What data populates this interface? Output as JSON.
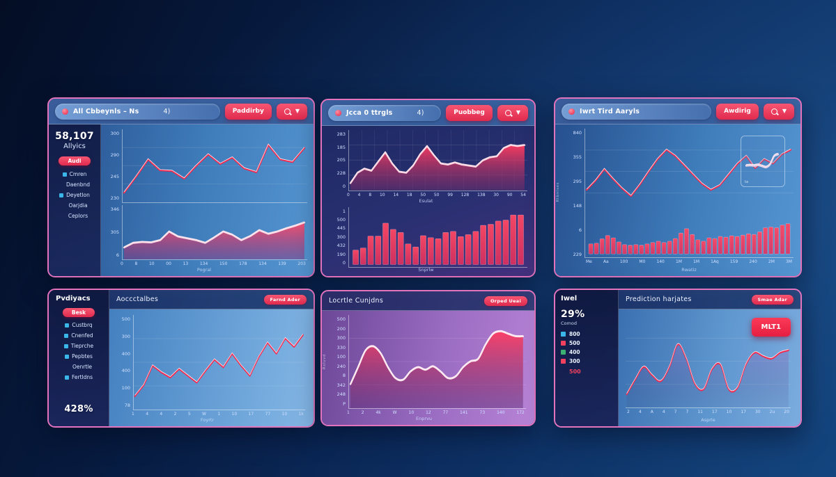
{
  "colors": {
    "accent_red": "#f2415f",
    "panel_border": "#e273bc",
    "icon_blue": "#3ab6e8",
    "legend_green": "#3bb273"
  },
  "panels": {
    "p1": {
      "search_text": "All Cbbeynls – Ns",
      "search_badge": "4)",
      "button": "Paddirby",
      "stat": "58,107",
      "stat_label": "Allyics",
      "pill": "Audi",
      "items": [
        {
          "icon": "#3ab6e8",
          "label": "Cmren"
        },
        {
          "icon": "",
          "label": "Daenbnd"
        },
        {
          "icon": "#3ab6e8",
          "label": "Deyetlon"
        },
        {
          "icon": "",
          "label": "Oarjdia"
        },
        {
          "icon": "",
          "label": "Ceplors"
        }
      ]
    },
    "p2": {
      "search_text": "Jcca 0 ttrgls",
      "search_badge": "4)",
      "button": "Puobbeg"
    },
    "p3": {
      "search_text": "Iwrt Tird Aaryls",
      "button": "Awdirig",
      "inset_label": "ta"
    },
    "p4": {
      "sidebar_title": "Pvdiyacs",
      "pill": "Besk",
      "stat": "428%",
      "items": [
        {
          "icon": "#3ab6e8",
          "label": "Custbrq"
        },
        {
          "icon": "#3ab6e8",
          "label": "Cnenfed"
        },
        {
          "icon": "#3ab6e8",
          "label": "Tieprche"
        },
        {
          "icon": "#3ab6e8",
          "label": "Pepbtes"
        },
        {
          "icon": "",
          "label": "Oenrtle"
        },
        {
          "icon": "#3ab6e8",
          "label": "Fertldns"
        }
      ],
      "header_title": "Aoccctalbes",
      "header_pill": "Farnd Ader"
    },
    "p5": {
      "header_title": "Locrtle Cunjdns",
      "header_pill": "Orped Ueai"
    },
    "p6": {
      "sidebar_title": "Iwel",
      "stat": "29%",
      "stat_label": "Comod",
      "extra": "500",
      "legend": [
        {
          "color": "#3ab6e8",
          "label": "800"
        },
        {
          "color": "#f2415f",
          "label": "500"
        },
        {
          "color": "#3bb273",
          "label": "400"
        },
        {
          "color": "#f2415f",
          "label": "300"
        }
      ],
      "header_title": "Prediction harjates",
      "header_pill": "Smae Adar",
      "callout": "MLT1"
    }
  },
  "chart_data": [
    {
      "id": "p1-trend-line",
      "type": "line",
      "grid": "h",
      "ylim": [
        0,
        100
      ],
      "line": "#f2294e",
      "values": [
        10,
        35,
        62,
        45,
        44,
        32,
        52,
        70,
        55,
        65,
        48,
        42,
        85,
        62,
        58,
        80
      ],
      "yticks": [
        "300",
        "290",
        "245",
        "230"
      ]
    },
    {
      "id": "p1-volume-area",
      "type": "area",
      "ylim": [
        0,
        100
      ],
      "line": "#ffdde8",
      "fill": [
        "#ff4d6b",
        "#8c2f7a"
      ],
      "values": [
        20,
        30,
        32,
        31,
        36,
        55,
        44,
        40,
        36,
        30,
        42,
        55,
        48,
        36,
        45,
        58,
        50,
        55,
        62,
        68,
        75
      ],
      "yticks": [
        "346",
        "305",
        "6"
      ],
      "xticks": [
        "0",
        "8",
        "10",
        "00",
        "13",
        "134",
        "150",
        "178",
        "134",
        "139",
        "203"
      ],
      "xlabel": "Pogral"
    },
    {
      "id": "p2-area",
      "type": "area",
      "grid": "hv",
      "ylim": [
        0,
        100
      ],
      "line": "#ffd4e0",
      "fill": [
        "#ff3b5e",
        "#7a2a66"
      ],
      "values": [
        8,
        28,
        36,
        32,
        50,
        68,
        46,
        30,
        28,
        42,
        64,
        80,
        62,
        46,
        44,
        48,
        44,
        42,
        40,
        52,
        58,
        60,
        76,
        82,
        80,
        82
      ],
      "yticks": [
        "283",
        "185",
        "205",
        "228",
        "0"
      ],
      "xticks": [
        "0",
        "4",
        "8",
        "10",
        "14",
        "18",
        "50",
        "50",
        "99",
        "128",
        "138",
        "30",
        "90",
        "54"
      ],
      "xlabel": "Esulat"
    },
    {
      "id": "p2-bars",
      "type": "bar",
      "ylim": [
        0,
        100
      ],
      "fill": [
        "#ff4763",
        "#e8305d"
      ],
      "values": [
        28,
        32,
        55,
        55,
        80,
        68,
        62,
        40,
        34,
        56,
        52,
        50,
        62,
        64,
        54,
        58,
        64,
        76,
        78,
        84,
        86,
        96,
        96
      ],
      "yticks": [
        "1",
        "500",
        "445",
        "300",
        "432",
        "190",
        "0"
      ],
      "xlabel": "Snprlw"
    },
    {
      "id": "p3-trend-line",
      "type": "line",
      "grid": "h",
      "ylim": [
        0,
        100
      ],
      "line": "#f2294e",
      "values": [
        28,
        40,
        55,
        42,
        30,
        20,
        35,
        52,
        68,
        80,
        72,
        60,
        48,
        36,
        28,
        34,
        48,
        62,
        72,
        56,
        68,
        62,
        74,
        80
      ],
      "yticks": [
        "840",
        "355",
        "295",
        "148",
        "6",
        "229"
      ],
      "ylabel": "Rtbnlses"
    },
    {
      "id": "p3-bars",
      "type": "bar",
      "ylim": [
        0,
        100
      ],
      "fill": [
        "#ff4763",
        "#e8305d"
      ],
      "values": [
        30,
        32,
        45,
        55,
        48,
        36,
        28,
        26,
        28,
        26,
        30,
        34,
        38,
        34,
        38,
        46,
        62,
        75,
        58,
        42,
        38,
        48,
        46,
        52,
        50,
        54,
        52,
        56,
        60,
        58,
        66,
        78,
        80,
        78,
        86,
        90
      ],
      "xticks": [
        "Me",
        "Aa",
        "100",
        "M0",
        "140",
        "1M",
        "1M",
        "1Aq",
        "159",
        "240",
        "2M",
        "3M"
      ],
      "xlabel": "Rwatiz"
    },
    {
      "id": "p3-inset-line",
      "type": "line",
      "smooth": true,
      "ylim": [
        0,
        100
      ],
      "line": "#e9d5ea",
      "values": [
        40,
        41,
        40,
        42,
        38,
        34,
        45,
        75,
        82
      ]
    },
    {
      "id": "p4-line",
      "type": "line",
      "grid": "h",
      "ylim": [
        0,
        100
      ],
      "line": "#f2294e",
      "values": [
        12,
        25,
        48,
        40,
        34,
        44,
        36,
        28,
        42,
        55,
        46,
        62,
        48,
        36,
        58,
        75,
        62,
        80,
        70,
        84
      ],
      "yticks": [
        "500",
        "300",
        "400",
        "400",
        "100",
        "78"
      ],
      "xticks": [
        "1",
        "4",
        "4",
        "2",
        "5",
        "W",
        "1",
        "10",
        "17",
        "77",
        "10",
        "1k"
      ],
      "xlabel": "Foyrtr"
    },
    {
      "id": "p5-area",
      "type": "area",
      "smooth": true,
      "grid": "h",
      "ylim": [
        0,
        100
      ],
      "line": "#ffe9f0",
      "fill": [
        "#ff3f63",
        "#5c2a72"
      ],
      "values": [
        25,
        45,
        65,
        70,
        62,
        45,
        32,
        30,
        40,
        45,
        42,
        46,
        40,
        32,
        34,
        45,
        52,
        55,
        72,
        85,
        88,
        85,
        82,
        82
      ],
      "yticks": [
        "500",
        "200",
        "300",
        "330",
        "100",
        "240",
        "8",
        "342",
        "248",
        "P"
      ],
      "ylabel": "Rsluvd",
      "xticks": [
        "1",
        "2",
        "4k",
        "W",
        "10",
        "12",
        "77",
        "141",
        "73",
        "140",
        "172"
      ],
      "xlabel": "Enprvu"
    },
    {
      "id": "p6-line",
      "type": "area",
      "smooth": true,
      "grid": "h",
      "ylim": [
        0,
        100
      ],
      "line": "#f2294e",
      "fill": [
        "#a05ec0",
        "#30255e"
      ],
      "fillop": 0.32,
      "values": [
        12,
        30,
        45,
        35,
        28,
        45,
        72,
        55,
        25,
        18,
        42,
        48,
        18,
        20,
        48,
        62,
        58,
        55,
        62,
        65
      ],
      "xticks": [
        "2",
        "4",
        "A",
        "4",
        "7",
        "7",
        "11",
        "17",
        "10",
        "17",
        "30",
        "2u",
        "20"
      ],
      "xlabel": "Asprle"
    }
  ]
}
